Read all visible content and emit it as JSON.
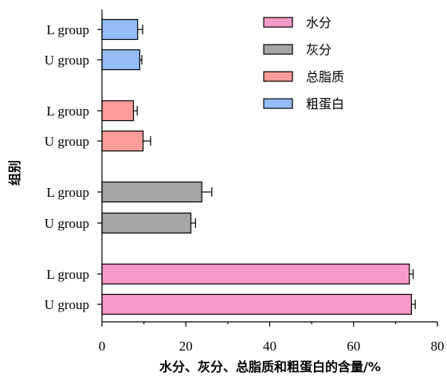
{
  "chart_data": {
    "type": "bar",
    "orientation": "horizontal",
    "xlabel": "水分、灰分、总脂质和粗蛋白的含量/%",
    "ylabel": "组别",
    "xlim": [
      0,
      80
    ],
    "xticks": [
      0,
      20,
      40,
      60,
      80
    ],
    "grid": false,
    "legend_position": "top-right",
    "series": [
      {
        "name": "水分",
        "color": "#F79AC9",
        "bars": [
          {
            "category": "U group",
            "value": 73.8,
            "error": 0.9
          },
          {
            "category": "L group",
            "value": 73.3,
            "error": 0.9
          }
        ]
      },
      {
        "name": "灰分",
        "color": "#A6A6A6",
        "bars": [
          {
            "category": "U group",
            "value": 21.2,
            "error": 1.1
          },
          {
            "category": "L group",
            "value": 23.8,
            "error": 2.4
          }
        ]
      },
      {
        "name": "总脂质",
        "color": "#FA9C98",
        "bars": [
          {
            "category": "U group",
            "value": 9.8,
            "error": 1.8
          },
          {
            "category": "L group",
            "value": 7.5,
            "error": 0.9
          }
        ]
      },
      {
        "name": "粗蛋白",
        "color": "#94BCF6",
        "bars": [
          {
            "category": "U group",
            "value": 9.0,
            "error": 0.5
          },
          {
            "category": "L group",
            "value": 8.5,
            "error": 1.2
          }
        ]
      }
    ]
  }
}
